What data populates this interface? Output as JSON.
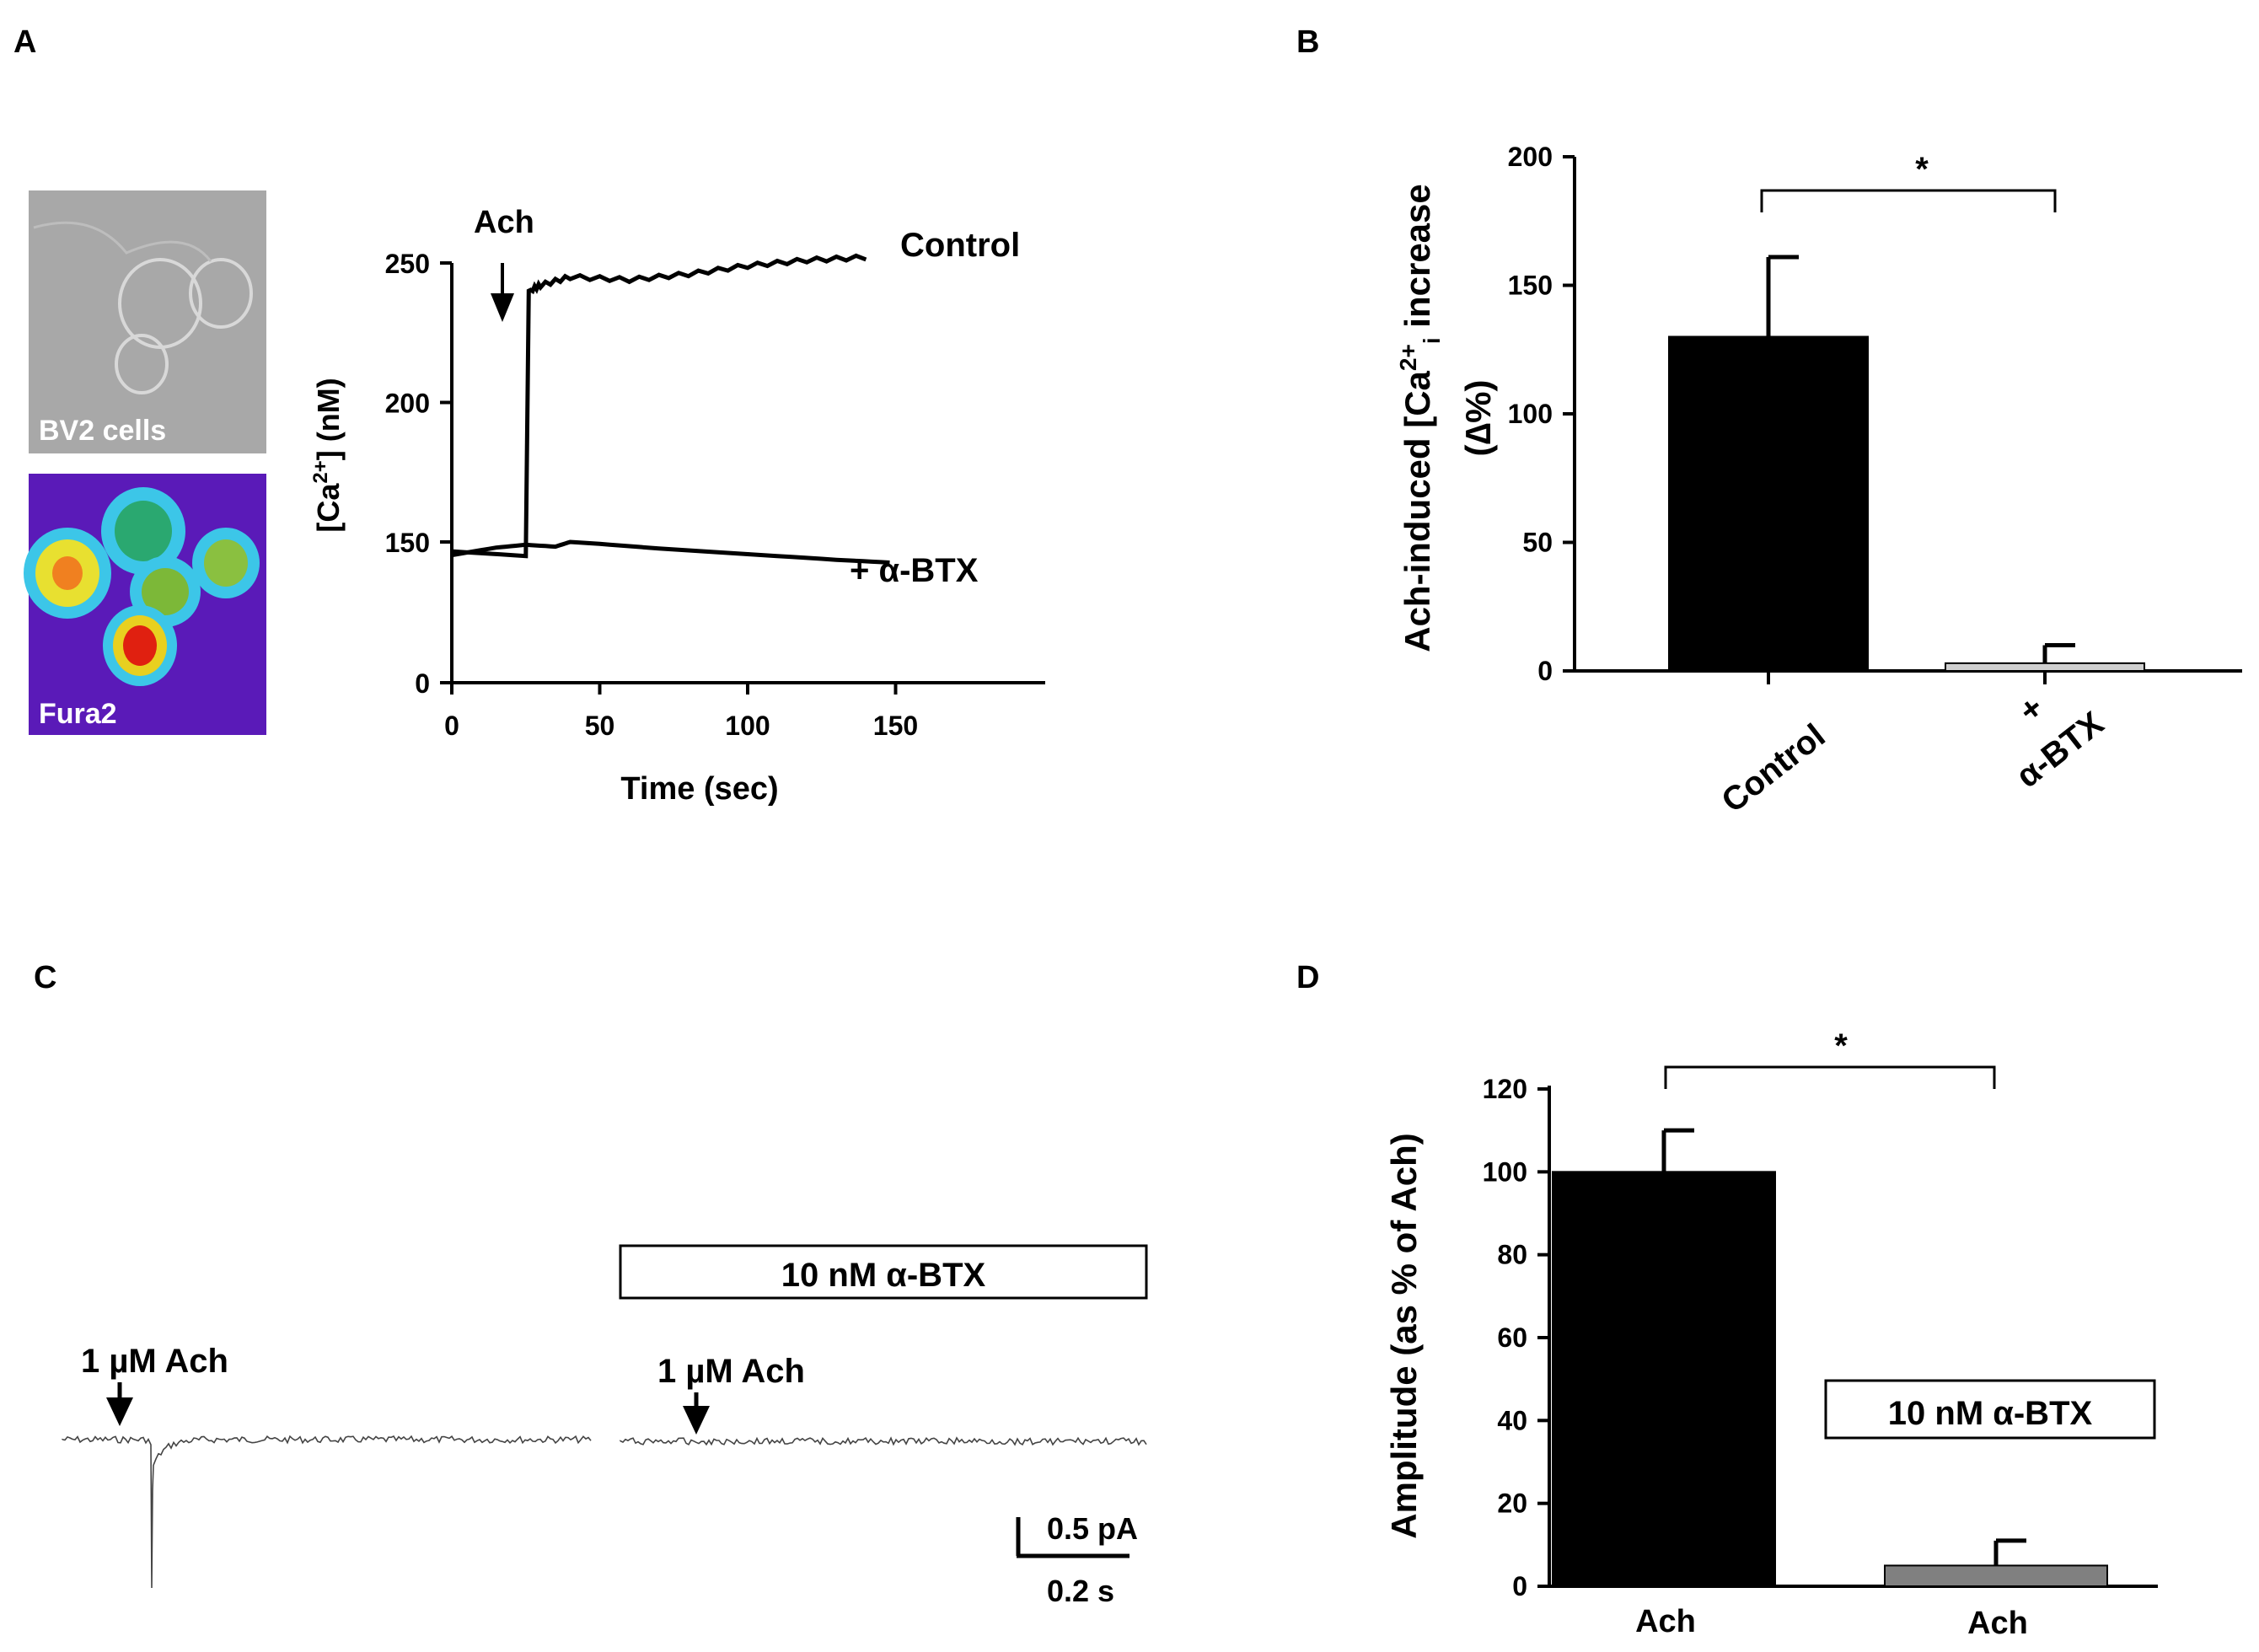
{
  "colors": {
    "ink": "#000000",
    "bar_black": "#000000",
    "bar_light": "#cfcfcf",
    "bar_gray": "#808080",
    "photo_bg": "#a8a8a8",
    "fura_bg": "#5a1ab8"
  },
  "panels": {
    "a": "A",
    "b": "B",
    "c": "C",
    "d": "D"
  },
  "images": {
    "bv2_label": "BV2 cells",
    "fura_label": "Fura2"
  },
  "panel_c": {
    "box_label": "10 nM α-BTX",
    "stim1": "1 µM Ach",
    "stim2": "1 µM Ach",
    "scale_y": "0.5 pA",
    "scale_x": "0.2 s"
  },
  "chart_data": [
    {
      "id": "A",
      "type": "line",
      "xlabel": "Time (sec)",
      "ylabel_base": "[Ca",
      "ylabel_sup": "2+",
      "ylabel_rest": "] (nM)",
      "xlim": [
        0,
        200
      ],
      "ylim": [
        0,
        250
      ],
      "x_ticks": [
        0,
        50,
        100,
        150
      ],
      "y_ticks": [
        0,
        150,
        200,
        250
      ],
      "y_tick_labels": [
        "0",
        "150",
        "200",
        "250"
      ],
      "annotation": "Ach",
      "annotation_x": 18,
      "series": [
        {
          "name": "Control",
          "points": [
            [
              0,
              140
            ],
            [
              25,
              135
            ],
            [
              26,
              240
            ],
            [
              30,
              242
            ],
            [
              40,
              245
            ],
            [
              60,
              244
            ],
            [
              80,
              246
            ],
            [
              100,
              249
            ],
            [
              120,
              251
            ],
            [
              140,
              252
            ]
          ]
        },
        {
          "name": "+ α-BTX",
          "points": [
            [
              0,
              136
            ],
            [
              15,
              144
            ],
            [
              25,
              147
            ],
            [
              35,
              145
            ],
            [
              40,
              150
            ],
            [
              50,
              148
            ],
            [
              70,
              143
            ],
            [
              100,
              137
            ],
            [
              130,
              131
            ],
            [
              148,
              128
            ]
          ]
        }
      ]
    },
    {
      "id": "B",
      "type": "bar",
      "ylabel": "Ach-induced [Ca",
      "ylabel_sup": "2+",
      "ylabel_sub": "i",
      "ylabel_end": " increase",
      "ylabel2": "(∆%)",
      "ylim": [
        0,
        200
      ],
      "y_ticks": [
        0,
        50,
        100,
        150,
        200
      ],
      "categories": [
        "Control",
        "+\nα-BTX"
      ],
      "category_labels": [
        "Control",
        "+",
        "α-BTX"
      ],
      "values": [
        130,
        3
      ],
      "errors": [
        31,
        7
      ],
      "significance": "*"
    },
    {
      "id": "D",
      "type": "bar",
      "ylabel": "Amplitude (as % of Ach)",
      "ylim": [
        0,
        120
      ],
      "y_ticks": [
        0,
        20,
        40,
        60,
        80,
        100,
        120
      ],
      "categories": [
        "Ach",
        "Ach"
      ],
      "values": [
        100,
        5
      ],
      "errors": [
        10,
        6
      ],
      "significance": "*",
      "box_label": "10 nM α-BTX"
    }
  ]
}
